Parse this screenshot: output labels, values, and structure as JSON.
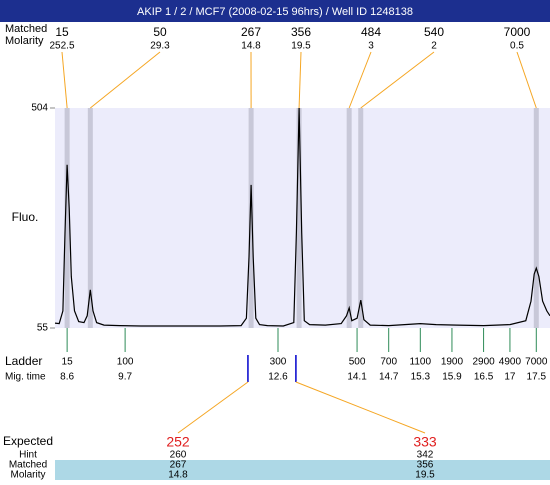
{
  "chart_data": {
    "type": "line",
    "title": "AKIP 1 / 2 / MCF7 (2008-02-15 96hrs) / Well ID 1248138",
    "ylabel": "Fluo.",
    "ylim": [
      55,
      504
    ],
    "yticks": [
      55,
      504
    ],
    "xlim": [
      8.37,
      17.76
    ],
    "color": "#000000",
    "x": [
      8.37,
      8.45,
      8.52,
      8.56,
      8.6,
      8.64,
      8.68,
      8.74,
      8.82,
      8.92,
      8.98,
      9.04,
      9.09,
      9.16,
      9.3,
      9.6,
      10.0,
      10.5,
      11.0,
      11.5,
      11.9,
      12.0,
      12.05,
      12.09,
      12.13,
      12.18,
      12.25,
      12.4,
      12.7,
      12.9,
      12.95,
      13.0,
      13.05,
      13.1,
      13.2,
      13.5,
      13.8,
      13.9,
      13.95,
      14.0,
      14.1,
      14.17,
      14.23,
      14.35,
      14.7,
      15.0,
      15.3,
      15.6,
      16.0,
      16.5,
      17.0,
      17.3,
      17.4,
      17.46,
      17.5,
      17.55,
      17.62,
      17.7,
      17.76
    ],
    "values": [
      65,
      64,
      90,
      250,
      388,
      300,
      160,
      90,
      68,
      66,
      80,
      133,
      90,
      66,
      61,
      60,
      59,
      59,
      59,
      59,
      60,
      75,
      200,
      347,
      200,
      75,
      62,
      60,
      59,
      66,
      250,
      504,
      250,
      70,
      62,
      61,
      64,
      80,
      96,
      70,
      75,
      112,
      72,
      61,
      60,
      62,
      64,
      62,
      61,
      60,
      62,
      70,
      110,
      165,
      177,
      160,
      110,
      90,
      80
    ],
    "peaks": [
      {
        "size": 15,
        "molarity": 252.5,
        "time": 8.6
      },
      {
        "size": 50,
        "molarity": 29.3,
        "time": 9.04
      },
      {
        "size": 267,
        "molarity": 14.8,
        "time": 12.09
      },
      {
        "size": 356,
        "molarity": 19.5,
        "time": 13.0
      },
      {
        "size": 484,
        "molarity": 3,
        "time": 13.95
      },
      {
        "size": 540,
        "molarity": 2,
        "time": 14.17
      },
      {
        "size": 7000,
        "molarity": 0.5,
        "time": 17.5
      }
    ]
  },
  "rows": {
    "matched": "Matched",
    "molarity": "Molarity",
    "ladder": "Ladder",
    "mig_time": "Mig. time",
    "expected": "Expected",
    "hint": "Hint"
  },
  "ladder": [
    {
      "size": 15,
      "time": 8.6
    },
    {
      "size": 100,
      "time": 9.7
    },
    {
      "size": 300,
      "time": 12.6
    },
    {
      "size": 500,
      "time": 14.1
    },
    {
      "size": 700,
      "time": 14.7
    },
    {
      "size": 1100,
      "time": 15.3
    },
    {
      "size": 1900,
      "time": 15.9
    },
    {
      "size": 2900,
      "time": 16.5
    },
    {
      "size": 4900,
      "time": 17
    },
    {
      "size": 7000,
      "time": 17.5
    }
  ],
  "expected": [
    {
      "expected": 252,
      "hint": 260,
      "matched": 267,
      "molarity": 14.8,
      "time": 12.03
    },
    {
      "expected": 333,
      "hint": 342,
      "matched": 356,
      "molarity": 19.5,
      "time": 12.94
    }
  ]
}
